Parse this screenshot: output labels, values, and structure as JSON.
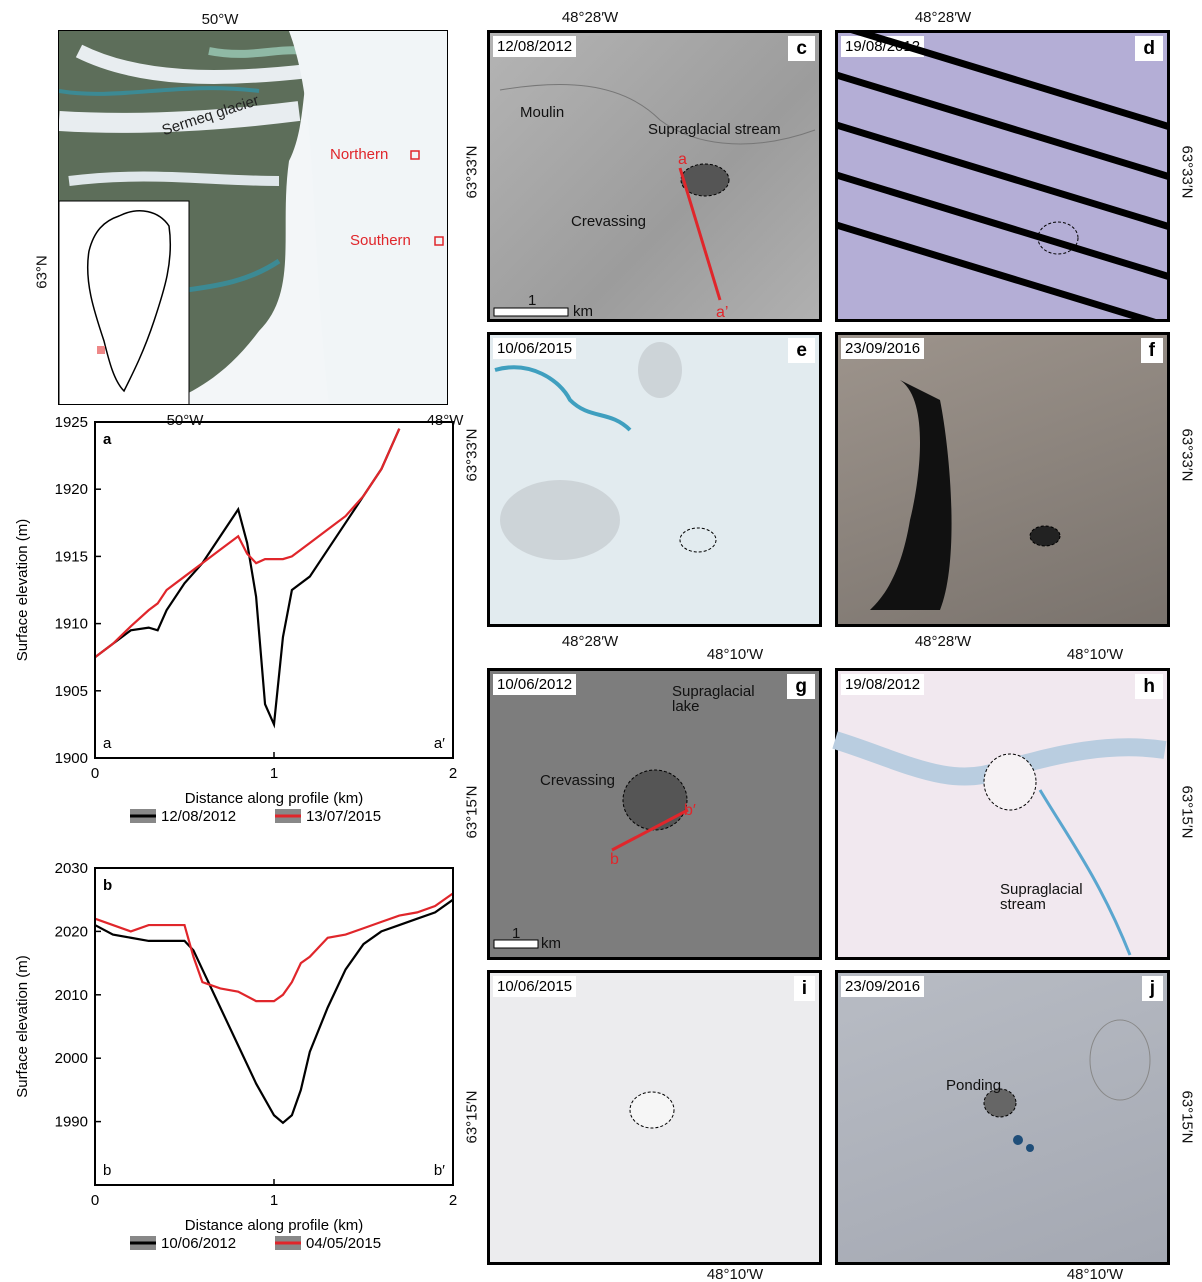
{
  "chart_data": [
    {
      "type": "line",
      "panel_label": "a",
      "corner_labels": [
        "a",
        "a′"
      ],
      "x_label": "Distance along profile (km)",
      "y_label": "Surface elevation (m)",
      "x": [
        0,
        0.1,
        0.2,
        0.3,
        0.35,
        0.4,
        0.5,
        0.6,
        0.7,
        0.8,
        0.85,
        0.9,
        0.95,
        1.0,
        1.05,
        1.1,
        1.2,
        1.3,
        1.4,
        1.5,
        1.6,
        1.7
      ],
      "series": [
        {
          "name": "12/08/2012",
          "color": "#000000",
          "values": [
            1907.5,
            1908.5,
            1909.5,
            1909.7,
            1909.5,
            1911,
            1913,
            1914.5,
            1916.5,
            1918.5,
            1916,
            1912,
            1904,
            1902.5,
            1909,
            1912.5,
            1913.5,
            1915.5,
            1917.5,
            1919.5,
            1921.5,
            1924.5
          ]
        },
        {
          "name": "13/07/2015",
          "color": "#e0262b",
          "values": [
            1907.5,
            1908.5,
            1909.8,
            1911,
            1911.5,
            1912.5,
            1913.5,
            1914.5,
            1915.5,
            1916.5,
            1915.2,
            1914.5,
            1914.8,
            1914.8,
            1914.8,
            1915,
            1916,
            1917,
            1918,
            1919.5,
            1921.5,
            1924.5
          ]
        }
      ],
      "xlim": [
        0,
        2
      ],
      "ylim": [
        1900,
        1925
      ],
      "xticks": [
        0,
        1,
        2
      ],
      "yticks": [
        1900,
        1905,
        1910,
        1915,
        1920,
        1925
      ]
    },
    {
      "type": "line",
      "panel_label": "b",
      "corner_labels": [
        "b",
        "b′"
      ],
      "x_label": "Distance along profile (km)",
      "y_label": "Surface elevation (m)",
      "x": [
        0,
        0.1,
        0.2,
        0.3,
        0.4,
        0.5,
        0.55,
        0.6,
        0.7,
        0.8,
        0.9,
        1.0,
        1.05,
        1.1,
        1.15,
        1.2,
        1.3,
        1.4,
        1.5,
        1.6,
        1.7,
        1.8,
        1.9,
        2.0
      ],
      "series": [
        {
          "name": "10/06/2012",
          "color": "#000000",
          "values": [
            2021,
            2019.5,
            2019,
            2018.5,
            2018.5,
            2018.5,
            2017,
            2014,
            2008,
            2002,
            1996,
            1991,
            1989.8,
            1991,
            1995,
            2001,
            2008,
            2014,
            2018,
            2020,
            2021,
            2022,
            2023,
            2025
          ]
        },
        {
          "name": "04/05/2015",
          "color": "#e0262b",
          "values": [
            2022,
            2021,
            2020,
            2021,
            2021,
            2021,
            2016,
            2012,
            2011,
            2010.5,
            2009,
            2009,
            2010,
            2012,
            2015,
            2016,
            2019,
            2019.5,
            2020.5,
            2021.5,
            2022.5,
            2023,
            2024,
            2026
          ]
        }
      ],
      "xlim": [
        0,
        2
      ],
      "ylim": [
        1980,
        2030
      ],
      "xticks": [
        0,
        1,
        2
      ],
      "yticks": [
        1990,
        2000,
        2010,
        2020,
        2030
      ]
    }
  ],
  "map": {
    "top_label": "50°W",
    "left_label": "63°N",
    "bottom_labels": [
      "50°W",
      "48°W"
    ],
    "glacier_label": "Sermeq glacier",
    "sites": [
      "Northern",
      "Southern"
    ]
  },
  "coordinates": [
    "48°28′W",
    "48°28′W",
    "63°33′N",
    "63°33′N",
    "63°33′N",
    "63°33′N",
    "48°28′W",
    "48°28′W",
    "48°10′W",
    "48°10′W",
    "63°15′N",
    "63°15′N",
    "63°15′N",
    "63°15′N",
    "48°10′W",
    "48°10′W"
  ],
  "panels": [
    {
      "date": "12/08/2012",
      "letter": "c",
      "annotations": [
        "Moulin",
        "Supraglacial stream",
        "Crevassing",
        "a",
        "a’",
        "1",
        "km"
      ]
    },
    {
      "date": "19/08/2012",
      "letter": "d",
      "annotations": []
    },
    {
      "date": "10/06/2015",
      "letter": "e",
      "annotations": []
    },
    {
      "date": "23/09/2016",
      "letter": "f",
      "annotations": []
    },
    {
      "date": "10/06/2012",
      "letter": "g",
      "annotations": [
        "Supraglacial lake",
        "Crevassing",
        "b′",
        "b",
        "1",
        "km"
      ]
    },
    {
      "date": "19/08/2012",
      "letter": "h",
      "annotations": [
        "Supraglacial stream"
      ]
    },
    {
      "date": "10/06/2015",
      "letter": "i",
      "annotations": []
    },
    {
      "date": "23/09/2016",
      "letter": "j",
      "annotations": [
        "Ponding"
      ]
    }
  ]
}
